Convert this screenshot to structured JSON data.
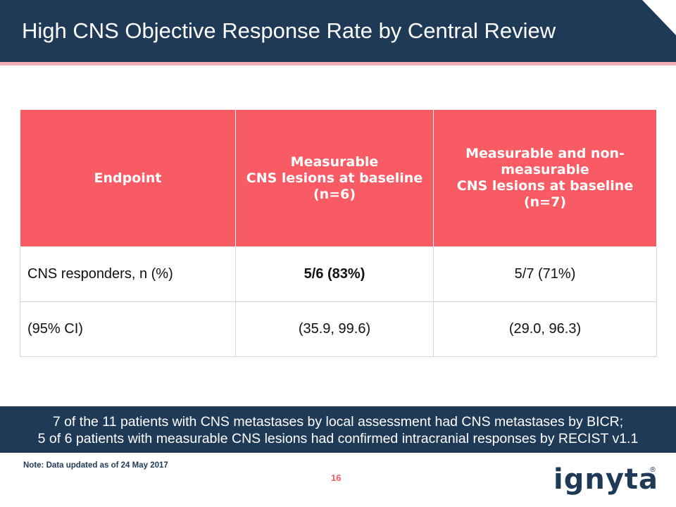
{
  "slide": {
    "title": "High CNS Objective Response Rate by Central Review",
    "page_number": "16",
    "note": "Note: Data updated as of 24 May 2017"
  },
  "table": {
    "headers": [
      "Endpoint",
      "Measurable\nCNS lesions at baseline\n(n=6)",
      "Measurable and non-measurable\nCNS lesions at baseline\n(n=7)"
    ],
    "rows": [
      [
        "CNS responders, n (%)",
        "5/6 (83%)",
        "5/7 (71%)"
      ],
      [
        "(95% CI)",
        "(35.9, 99.6)",
        "(29.0, 96.3)"
      ]
    ]
  },
  "summary": {
    "line1": "7 of the 11 patients with CNS metastases by local assessment had CNS metastases by BICR;",
    "line2": "5 of 6 patients with measurable CNS lesions had confirmed intracranial responses by RECIST v1.1"
  },
  "logo": {
    "text": "ignyta",
    "registered": "®",
    "color": "#1f3a56"
  },
  "colors": {
    "navy": "#1f3a56",
    "coral": "#f85b63",
    "pink_rule": "#f4aeb3"
  }
}
